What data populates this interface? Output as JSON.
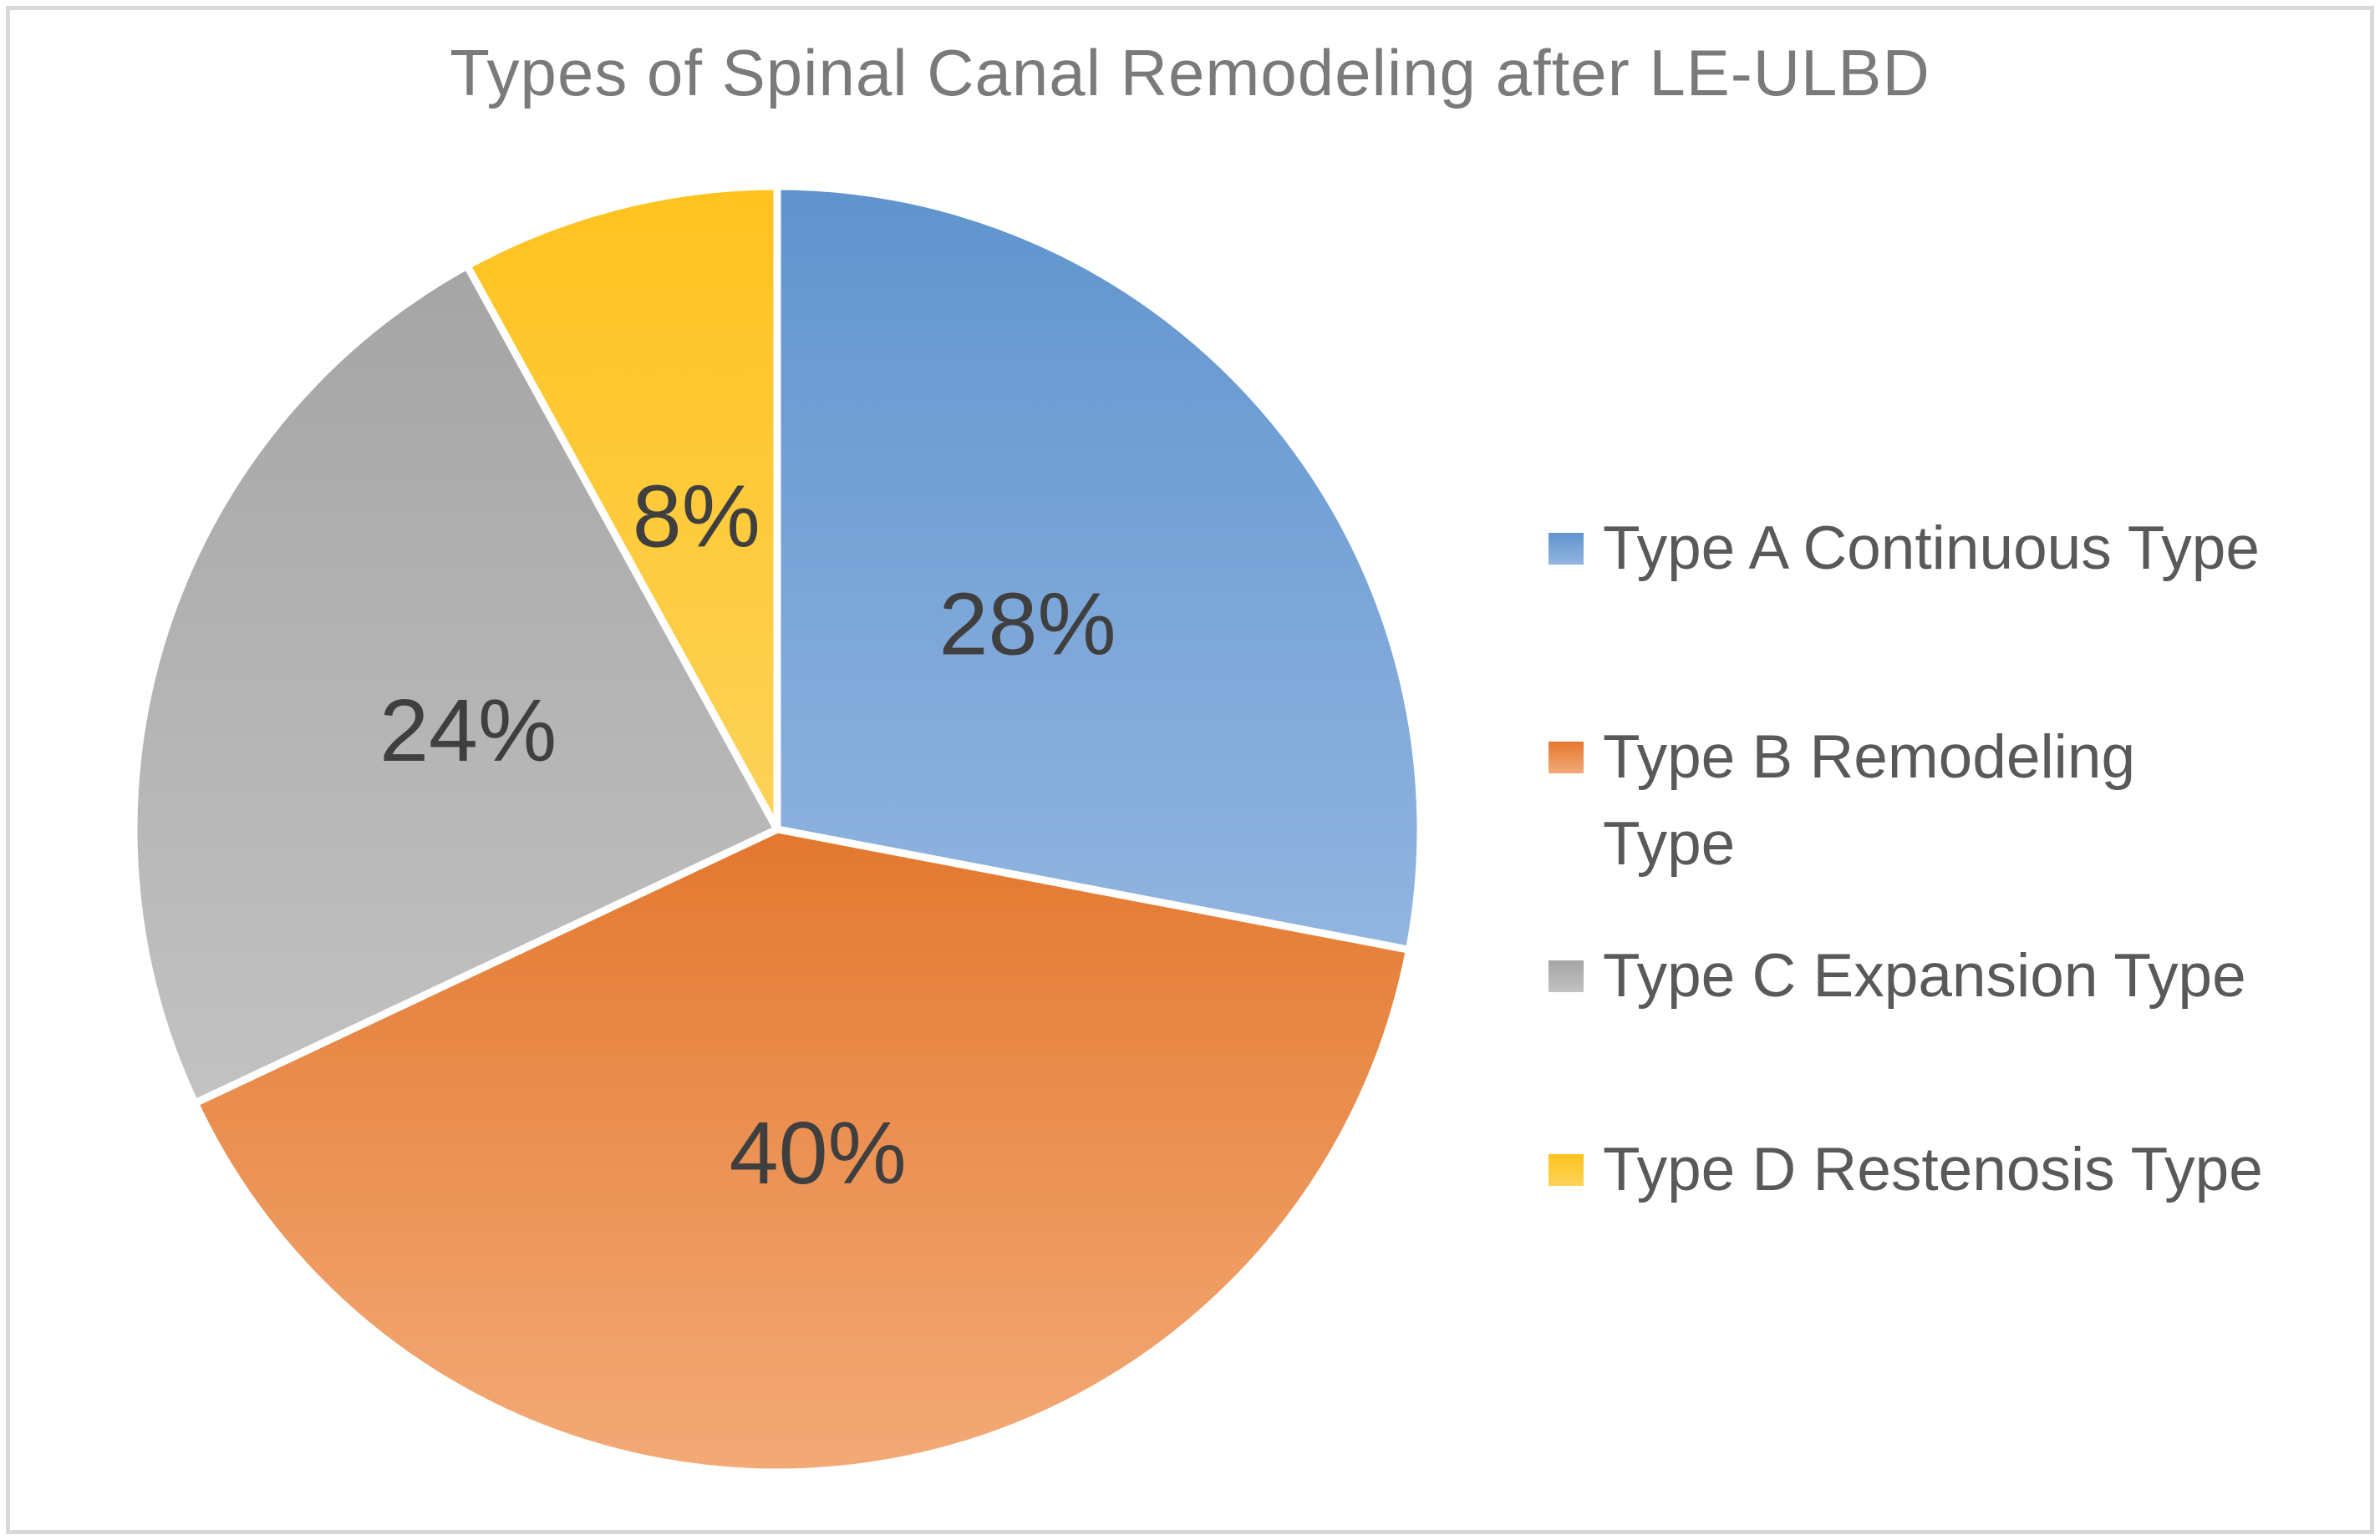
{
  "page": {
    "background": "#FFFFFF",
    "frame_border_color": "#D9D9D9"
  },
  "chart_data": {
    "type": "pie",
    "title": "Types of Spinal Canal Remodeling after LE-ULBD",
    "title_color": "#7A7A7A",
    "data_label_color": "#3F3F3F",
    "legend_position": "right",
    "legend_text_color": "#595959",
    "start_angle_deg": 0,
    "direction": "clockwise",
    "slice_separator_color": "#FFFFFF",
    "slices": [
      {
        "label": "Type A Continuous Type",
        "value": 28,
        "data_label": "28%",
        "color_top": "#6094CE",
        "color_bottom": "#92B5E0"
      },
      {
        "label": "Type B Remodeling Type",
        "value": 40,
        "data_label": "40%",
        "color_top": "#E3782F",
        "color_bottom": "#F3AA77"
      },
      {
        "label": "Type C Expansion Type",
        "value": 24,
        "data_label": "24%",
        "color_top": "#A5A5A5",
        "color_bottom": "#C2C2C2"
      },
      {
        "label": "Type D Restenosis Type",
        "value": 8,
        "data_label": "8%",
        "color_top": "#FFC31E",
        "color_bottom": "#FCD258"
      }
    ]
  }
}
